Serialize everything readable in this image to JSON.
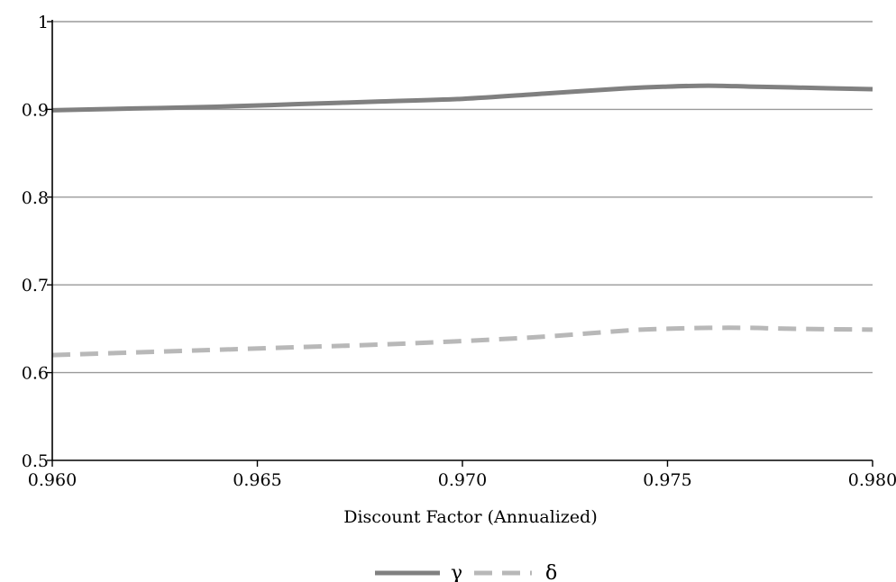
{
  "chart_data": {
    "type": "line",
    "title": "",
    "xlabel": "Discount Factor (Annualized)",
    "ylabel": "",
    "xlim": [
      0.96,
      0.98
    ],
    "ylim": [
      0.5,
      1.0
    ],
    "x_ticks": [
      "0.960",
      "0.965",
      "0.970",
      "0.975",
      "0.980"
    ],
    "y_ticks": [
      "0.5",
      "0.6",
      "0.7",
      "0.8",
      "0.9",
      "1"
    ],
    "grid": "horizontal",
    "legend_position": "bottom-center",
    "x": [
      0.96,
      0.962,
      0.964,
      0.966,
      0.968,
      0.97,
      0.972,
      0.974,
      0.975,
      0.976,
      0.977,
      0.978,
      0.98
    ],
    "series": [
      {
        "name": "γ",
        "color": "#808080",
        "style": "solid",
        "values": [
          0.899,
          0.901,
          0.903,
          0.906,
          0.909,
          0.912,
          0.918,
          0.924,
          0.926,
          0.927,
          0.926,
          0.925,
          0.923
        ]
      },
      {
        "name": "δ",
        "color": "#b8b8b8",
        "style": "dashed",
        "values": [
          0.62,
          0.623,
          0.626,
          0.629,
          0.632,
          0.636,
          0.641,
          0.648,
          0.65,
          0.651,
          0.651,
          0.65,
          0.649
        ]
      }
    ]
  }
}
